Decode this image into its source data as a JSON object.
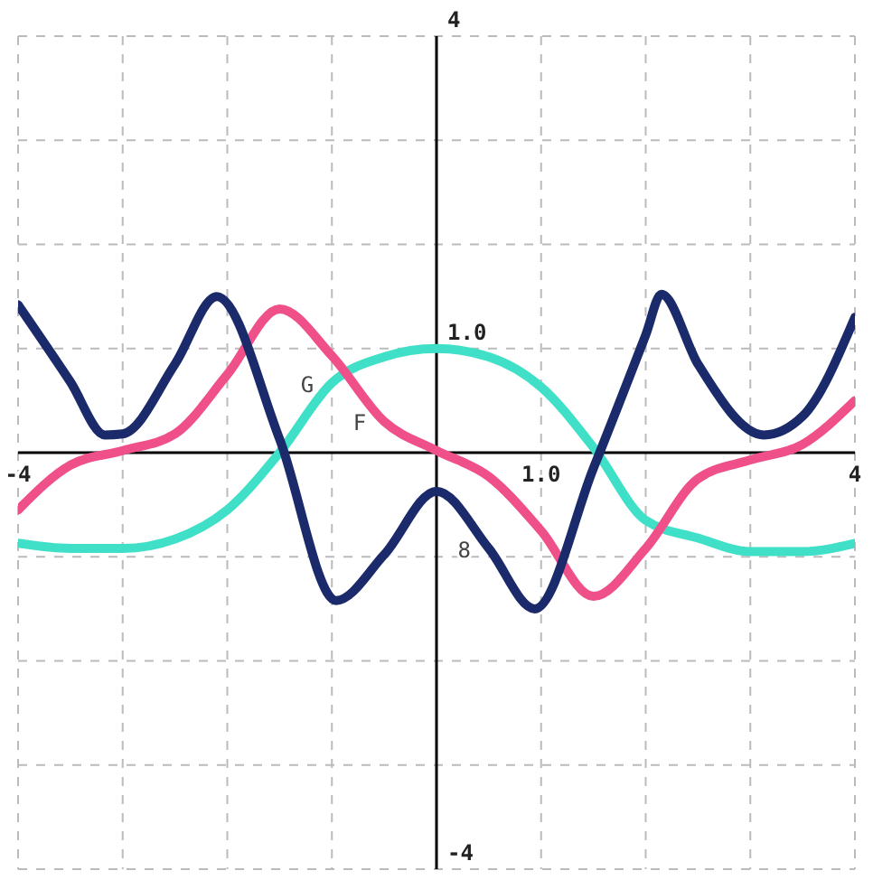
{
  "chart_data": {
    "type": "line",
    "xlim": [
      -4,
      4
    ],
    "ylim": [
      -4,
      4
    ],
    "xticks": [
      {
        "value": -4,
        "label": "-4"
      },
      {
        "value": -3,
        "label": null
      },
      {
        "value": -2,
        "label": null
      },
      {
        "value": -1,
        "label": null
      },
      {
        "value": 0,
        "label": null
      },
      {
        "value": 1,
        "label": "1.0"
      },
      {
        "value": 2,
        "label": null
      },
      {
        "value": 3,
        "label": null
      },
      {
        "value": 4,
        "label": "4"
      }
    ],
    "yticks": [
      {
        "value": -4,
        "label": "-4"
      },
      {
        "value": -3,
        "label": null
      },
      {
        "value": -2,
        "label": null
      },
      {
        "value": -1,
        "label": null
      },
      {
        "value": 0,
        "label": null
      },
      {
        "value": 1,
        "label": "1.0"
      },
      {
        "value": 2,
        "label": null
      },
      {
        "value": 3,
        "label": null
      },
      {
        "value": 4,
        "label": "4"
      }
    ],
    "grid": true,
    "legend": false,
    "marker": "none",
    "line_style": "solid",
    "series": [
      {
        "color": "#40e0c8",
        "x": [
          -4,
          -3.5,
          -3,
          -2.5,
          -2,
          -1.5,
          -1,
          -0.5,
          0,
          0.5,
          1,
          1.5,
          2,
          2.5,
          3,
          3.5,
          4
        ],
        "values": [
          -0.87,
          -0.92,
          -0.92,
          -0.83,
          -0.55,
          0,
          0.67,
          0.92,
          1.0,
          0.92,
          0.63,
          0.05,
          -0.65,
          -0.82,
          -0.95,
          -0.95,
          -0.87
        ]
      },
      {
        "color": "#f0508a",
        "x": [
          -4,
          -3.5,
          -3,
          -2.5,
          -2,
          -1.5,
          -1,
          -0.5,
          0,
          0.5,
          1,
          1.5,
          2,
          2.5,
          3,
          3.5,
          4
        ],
        "values": [
          -0.55,
          -0.12,
          0.02,
          0.18,
          0.75,
          1.38,
          0.93,
          0.3,
          0.02,
          -0.23,
          -0.75,
          -1.38,
          -0.92,
          -0.25,
          -0.07,
          0.08,
          0.5
        ]
      },
      {
        "color": "#1a2a6a",
        "x": [
          -4,
          -3.5,
          -3.17,
          -3,
          -2.5,
          -2.1,
          -1.5,
          -0.96,
          -0.5,
          0,
          0.5,
          0.94,
          1.5,
          2,
          2.15,
          2.5,
          3.13,
          3.5,
          4
        ],
        "values": [
          1.42,
          0.68,
          0.17,
          0.18,
          0.85,
          1.5,
          0.13,
          -1.42,
          -0.98,
          -0.37,
          -0.92,
          -1.5,
          -0.15,
          1.13,
          1.52,
          0.85,
          0.17,
          0.35,
          1.3
        ]
      }
    ],
    "annotations": [
      {
        "text": "F",
        "x": -0.5,
        "y": 0.3
      },
      {
        "text": "G",
        "x": -1,
        "y": 0.67
      },
      {
        "text": "8",
        "x": 0.5,
        "y": -0.92
      }
    ]
  }
}
